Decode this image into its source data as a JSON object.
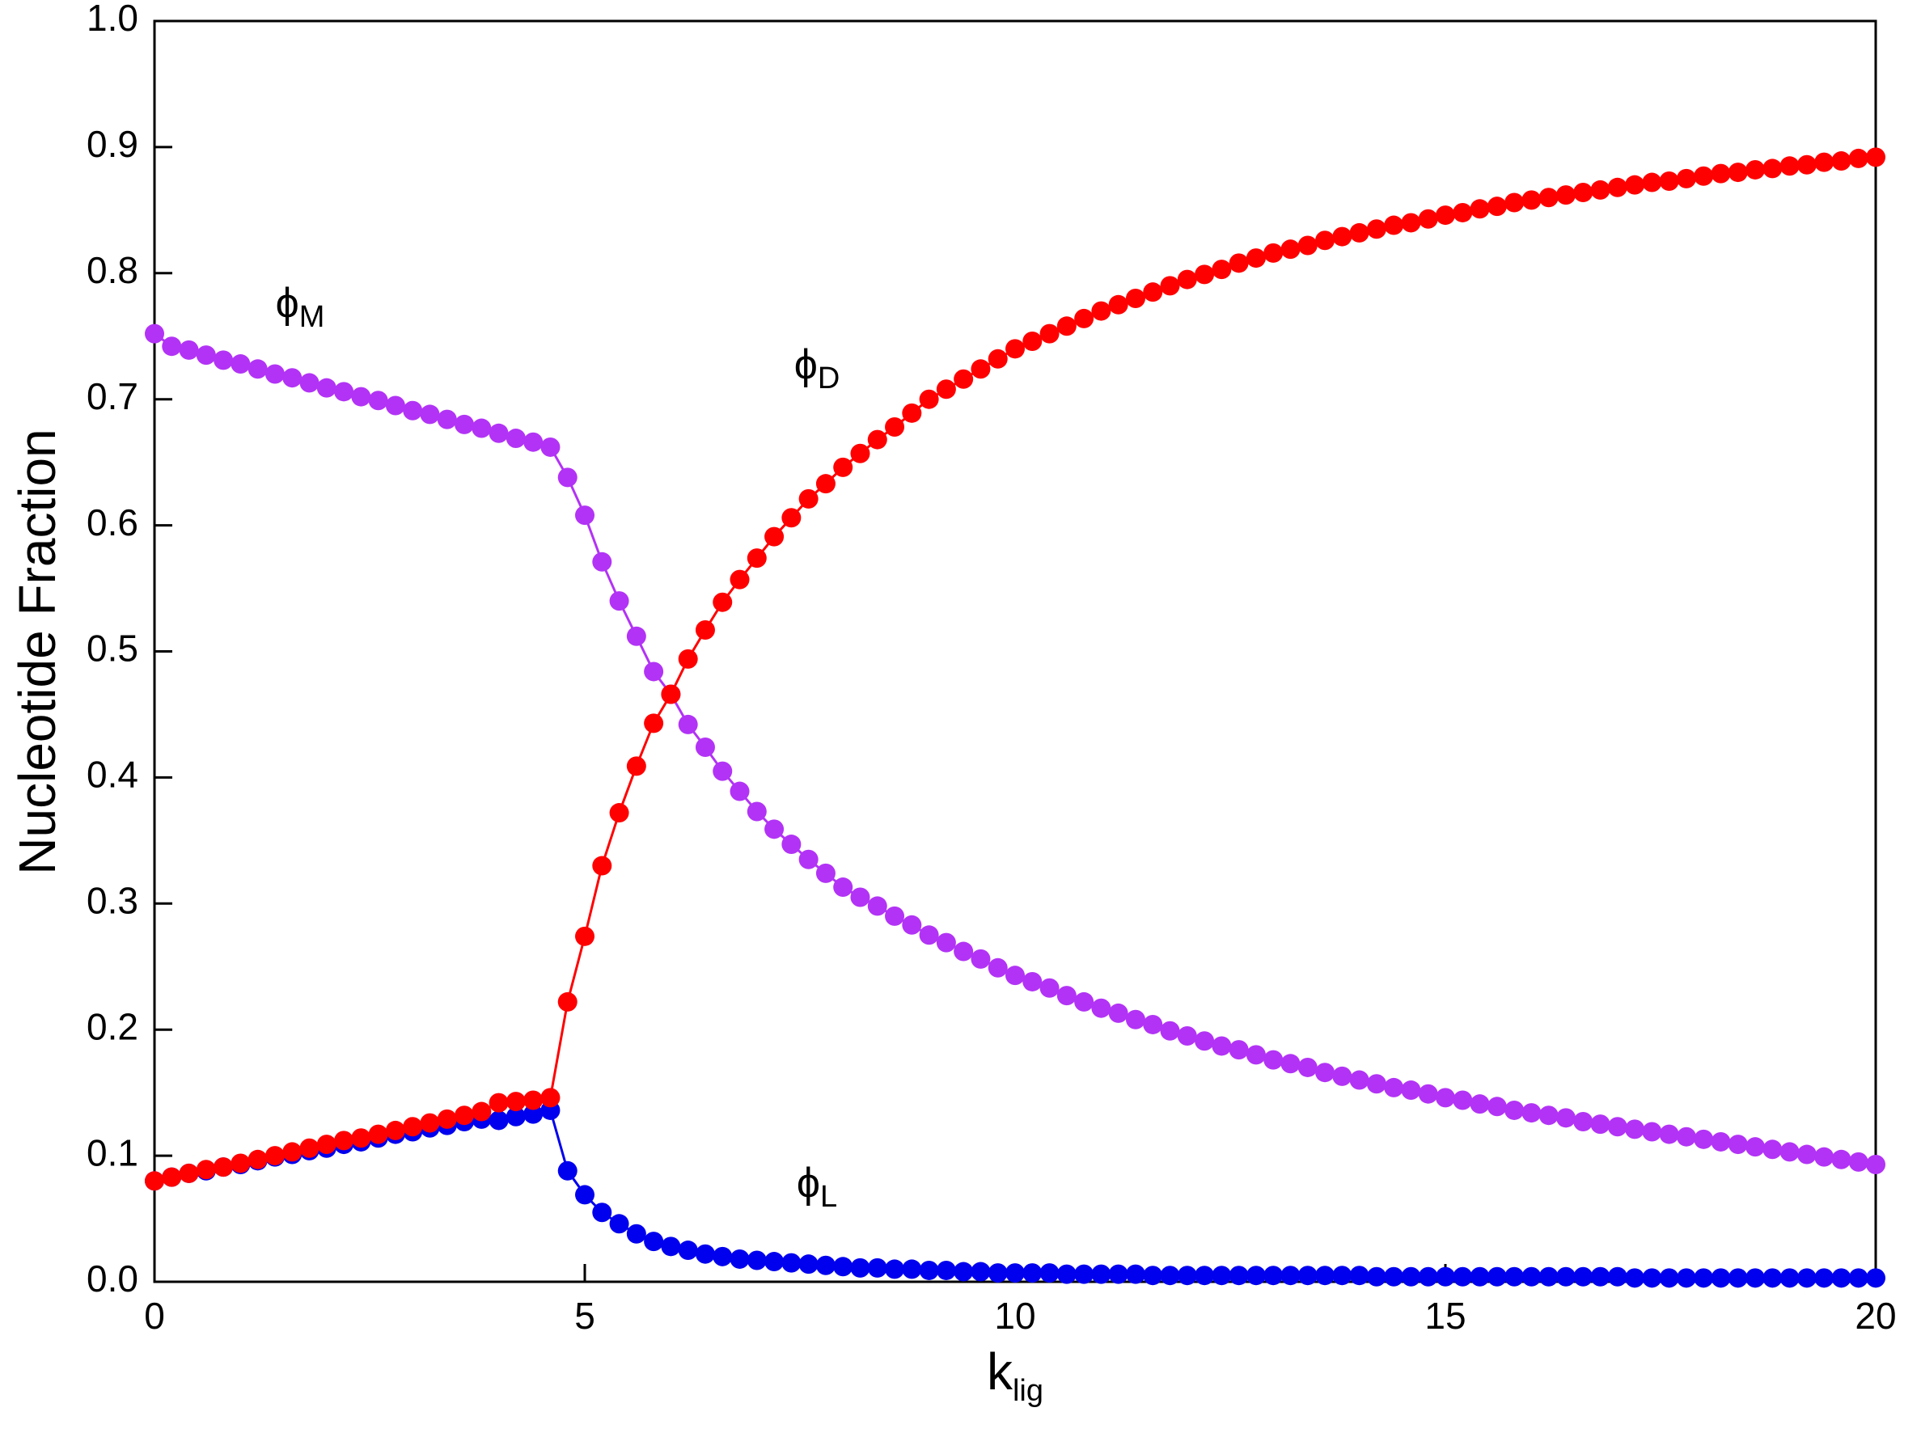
{
  "chart_data": {
    "type": "line",
    "markers": true,
    "x_label": {
      "text": "k",
      "sub": "lig"
    },
    "y_label": "Nucleotide Fraction",
    "xlim": [
      0,
      20
    ],
    "ylim": [
      0,
      1
    ],
    "xticks": [
      0,
      5,
      10,
      15,
      20
    ],
    "yticks": [
      {
        "value": 0,
        "label": "0.0"
      },
      0.1,
      0.2,
      0.3,
      0.4,
      0.5,
      0.6,
      0.7,
      0.8,
      0.9,
      {
        "value": 1,
        "label": "1.0"
      }
    ],
    "grid": false,
    "x": [
      0,
      0.2,
      0.4,
      0.6,
      0.8,
      1,
      1.2,
      1.4,
      1.6,
      1.8,
      2,
      2.2,
      2.4,
      2.6,
      2.8,
      3,
      3.2,
      3.4,
      3.6,
      3.8,
      4,
      4.2,
      4.4,
      4.6,
      4.8,
      5,
      5.2,
      5.4,
      5.6,
      5.8,
      6,
      6.2,
      6.4,
      6.6,
      6.8,
      7,
      7.2,
      7.4,
      7.6,
      7.8,
      8,
      8.2,
      8.4,
      8.6,
      8.8,
      9,
      9.2,
      9.4,
      9.6,
      9.8,
      10,
      10.2,
      10.4,
      10.6,
      10.8,
      11,
      11.2,
      11.4,
      11.6,
      11.8,
      12,
      12.2,
      12.4,
      12.6,
      12.8,
      13,
      13.2,
      13.4,
      13.6,
      13.8,
      14,
      14.2,
      14.4,
      14.6,
      14.8,
      15,
      15.2,
      15.4,
      15.6,
      15.8,
      16,
      16.2,
      16.4,
      16.6,
      16.8,
      17,
      17.2,
      17.4,
      17.6,
      17.8,
      18,
      18.2,
      18.4,
      18.6,
      18.8,
      19,
      19.2,
      19.4,
      19.6,
      19.8,
      20
    ],
    "series": [
      {
        "name": "ϕ",
        "sub": "L",
        "color": "#0000ee",
        "values": [
          0.08,
          0.083,
          0.086,
          0.088,
          0.091,
          0.093,
          0.096,
          0.099,
          0.101,
          0.104,
          0.106,
          0.109,
          0.111,
          0.114,
          0.117,
          0.119,
          0.122,
          0.124,
          0.127,
          0.129,
          0.128,
          0.131,
          0.133,
          0.136,
          0.088,
          0.069,
          0.055,
          0.046,
          0.038,
          0.032,
          0.028,
          0.025,
          0.022,
          0.02,
          0.018,
          0.017,
          0.016,
          0.015,
          0.014,
          0.013,
          0.012,
          0.011,
          0.011,
          0.01,
          0.01,
          0.009,
          0.009,
          0.008,
          0.008,
          0.007,
          0.007,
          0.007,
          0.007,
          0.006,
          0.006,
          0.006,
          0.006,
          0.006,
          0.005,
          0.005,
          0.005,
          0.005,
          0.005,
          0.005,
          0.005,
          0.005,
          0.005,
          0.005,
          0.005,
          0.005,
          0.005,
          0.004,
          0.004,
          0.004,
          0.004,
          0.004,
          0.004,
          0.004,
          0.004,
          0.004,
          0.004,
          0.004,
          0.004,
          0.004,
          0.004,
          0.004,
          0.003,
          0.003,
          0.003,
          0.003,
          0.003,
          0.003,
          0.003,
          0.003,
          0.003,
          0.003,
          0.003,
          0.003,
          0.003,
          0.003,
          0.003
        ]
      },
      {
        "name": "ϕ",
        "sub": "M",
        "color": "#b233f5",
        "values": [
          0.752,
          0.742,
          0.739,
          0.735,
          0.731,
          0.728,
          0.724,
          0.72,
          0.717,
          0.713,
          0.709,
          0.706,
          0.702,
          0.699,
          0.695,
          0.691,
          0.688,
          0.684,
          0.68,
          0.677,
          0.673,
          0.669,
          0.666,
          0.662,
          0.638,
          0.608,
          0.571,
          0.54,
          0.512,
          0.484,
          0.466,
          0.442,
          0.424,
          0.405,
          0.389,
          0.373,
          0.359,
          0.347,
          0.335,
          0.324,
          0.313,
          0.305,
          0.298,
          0.29,
          0.283,
          0.275,
          0.269,
          0.262,
          0.256,
          0.249,
          0.243,
          0.238,
          0.233,
          0.227,
          0.222,
          0.217,
          0.213,
          0.208,
          0.204,
          0.199,
          0.195,
          0.191,
          0.187,
          0.184,
          0.18,
          0.176,
          0.173,
          0.17,
          0.166,
          0.163,
          0.16,
          0.157,
          0.154,
          0.152,
          0.149,
          0.146,
          0.144,
          0.141,
          0.139,
          0.136,
          0.134,
          0.132,
          0.13,
          0.127,
          0.125,
          0.123,
          0.121,
          0.119,
          0.117,
          0.115,
          0.113,
          0.111,
          0.109,
          0.107,
          0.105,
          0.103,
          0.101,
          0.099,
          0.097,
          0.095,
          0.093
        ]
      },
      {
        "name": "ϕ",
        "sub": "D",
        "color": "#ff0000",
        "values": [
          0.08,
          0.083,
          0.086,
          0.089,
          0.091,
          0.094,
          0.097,
          0.1,
          0.103,
          0.106,
          0.109,
          0.112,
          0.114,
          0.117,
          0.12,
          0.123,
          0.126,
          0.129,
          0.132,
          0.135,
          0.142,
          0.143,
          0.144,
          0.146,
          0.222,
          0.274,
          0.33,
          0.372,
          0.409,
          0.443,
          0.466,
          0.494,
          0.517,
          0.539,
          0.557,
          0.574,
          0.591,
          0.606,
          0.621,
          0.633,
          0.646,
          0.657,
          0.668,
          0.678,
          0.689,
          0.7,
          0.708,
          0.716,
          0.724,
          0.732,
          0.74,
          0.746,
          0.752,
          0.758,
          0.764,
          0.77,
          0.775,
          0.78,
          0.785,
          0.79,
          0.795,
          0.799,
          0.803,
          0.808,
          0.812,
          0.816,
          0.819,
          0.822,
          0.826,
          0.829,
          0.832,
          0.835,
          0.838,
          0.84,
          0.843,
          0.846,
          0.848,
          0.851,
          0.853,
          0.856,
          0.858,
          0.86,
          0.862,
          0.864,
          0.866,
          0.868,
          0.87,
          0.872,
          0.873,
          0.875,
          0.877,
          0.879,
          0.88,
          0.882,
          0.883,
          0.885,
          0.886,
          0.888,
          0.889,
          0.891,
          0.892
        ]
      }
    ]
  }
}
